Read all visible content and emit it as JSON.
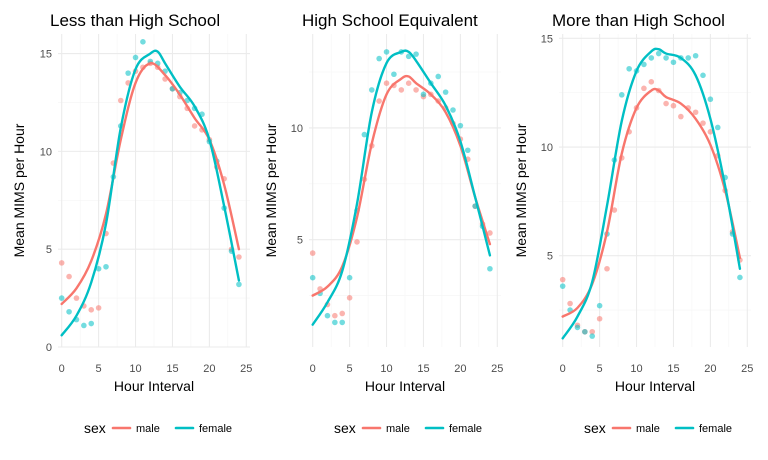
{
  "colors": {
    "male": "#F8766D",
    "female": "#00BFC4",
    "grid_major": "#EBEBEB",
    "grid_minor": "#F5F5F5"
  },
  "legend": {
    "title": "sex",
    "entries": [
      {
        "name": "male",
        "color": "#F8766D"
      },
      {
        "name": "female",
        "color": "#00BFC4"
      }
    ]
  },
  "chart_data": [
    {
      "type": "scatter",
      "title": "Less than High School",
      "xlabel": "Hour Interval",
      "ylabel": "Mean MIMS per Hour",
      "xlim": [
        -0.5,
        25.5
      ],
      "ylim": [
        0,
        16
      ],
      "xticks": [
        0,
        5,
        10,
        15,
        20,
        25
      ],
      "yticks": [
        0,
        5,
        10,
        15
      ],
      "grid": true,
      "legend_position": "bottom",
      "series": [
        {
          "name": "male",
          "points": [
            [
              0,
              4.3
            ],
            [
              1,
              3.6
            ],
            [
              2,
              2.5
            ],
            [
              3,
              2.1
            ],
            [
              4,
              1.9
            ],
            [
              5,
              2.0
            ],
            [
              6,
              5.8
            ],
            [
              7,
              9.4
            ],
            [
              8,
              12.6
            ],
            [
              9,
              13.5
            ],
            [
              10,
              14.1
            ],
            [
              11,
              14.3
            ],
            [
              12,
              14.5
            ],
            [
              13,
              14.3
            ],
            [
              14,
              13.7
            ],
            [
              15,
              13.2
            ],
            [
              16,
              12.8
            ],
            [
              17,
              12.2
            ],
            [
              18,
              11.3
            ],
            [
              19,
              11.1
            ],
            [
              20,
              10.6
            ],
            [
              21,
              9.2
            ],
            [
              22,
              8.6
            ],
            [
              23,
              5.0
            ],
            [
              24,
              4.6
            ]
          ],
          "smooth": [
            [
              0,
              2.2
            ],
            [
              2,
              3.0
            ],
            [
              4,
              4.4
            ],
            [
              6,
              6.8
            ],
            [
              8,
              10.6
            ],
            [
              10,
              13.5
            ],
            [
              12,
              14.5
            ],
            [
              14,
              13.9
            ],
            [
              16,
              12.9
            ],
            [
              18,
              11.7
            ],
            [
              20,
              10.6
            ],
            [
              22,
              8.3
            ],
            [
              24,
              5.0
            ]
          ]
        },
        {
          "name": "female",
          "points": [
            [
              0,
              2.5
            ],
            [
              1,
              1.8
            ],
            [
              2,
              1.4
            ],
            [
              3,
              1.1
            ],
            [
              4,
              1.2
            ],
            [
              5,
              4.0
            ],
            [
              6,
              4.1
            ],
            [
              7,
              8.7
            ],
            [
              8,
              11.3
            ],
            [
              9,
              14.0
            ],
            [
              10,
              14.8
            ],
            [
              11,
              15.6
            ],
            [
              12,
              14.6
            ],
            [
              13,
              14.5
            ],
            [
              14,
              14.1
            ],
            [
              15,
              13.2
            ],
            [
              16,
              13.0
            ],
            [
              17,
              12.6
            ],
            [
              18,
              12.2
            ],
            [
              19,
              11.9
            ],
            [
              20,
              10.5
            ],
            [
              21,
              9.5
            ],
            [
              22,
              7.1
            ],
            [
              23,
              4.9
            ],
            [
              24,
              3.2
            ]
          ],
          "smooth": [
            [
              0,
              0.6
            ],
            [
              2,
              1.6
            ],
            [
              4,
              3.3
            ],
            [
              6,
              6.3
            ],
            [
              8,
              11.2
            ],
            [
              10,
              14.2
            ],
            [
              12,
              15.0
            ],
            [
              13,
              15.1
            ],
            [
              14,
              14.5
            ],
            [
              16,
              13.3
            ],
            [
              18,
              12.3
            ],
            [
              20,
              10.6
            ],
            [
              22,
              7.2
            ],
            [
              24,
              3.4
            ]
          ]
        }
      ]
    },
    {
      "type": "scatter",
      "title": "High School Equivalent",
      "xlabel": "Hour Interval",
      "ylabel": "Mean MIMS per Hour",
      "xlim": [
        -0.5,
        25.5
      ],
      "ylim": [
        0.2,
        14.2
      ],
      "xticks": [
        0,
        5,
        10,
        15,
        20,
        25
      ],
      "yticks": [
        5,
        10
      ],
      "grid": true,
      "legend_position": "bottom",
      "series": [
        {
          "name": "male",
          "points": [
            [
              0,
              4.4
            ],
            [
              1,
              2.8
            ],
            [
              2,
              2.1
            ],
            [
              3,
              1.6
            ],
            [
              4,
              1.7
            ],
            [
              5,
              2.4
            ],
            [
              6,
              4.9
            ],
            [
              7,
              7.7
            ],
            [
              8,
              9.2
            ],
            [
              9,
              11.2
            ],
            [
              10,
              12.0
            ],
            [
              11,
              11.9
            ],
            [
              12,
              11.7
            ],
            [
              13,
              12.0
            ],
            [
              14,
              11.7
            ],
            [
              15,
              11.4
            ],
            [
              16,
              11.5
            ],
            [
              17,
              11.2
            ],
            [
              18,
              10.9
            ],
            [
              19,
              10.2
            ],
            [
              20,
              9.5
            ],
            [
              21,
              8.6
            ],
            [
              22,
              6.5
            ],
            [
              23,
              5.7
            ],
            [
              24,
              5.3
            ]
          ],
          "smooth": [
            [
              0,
              2.5
            ],
            [
              2,
              2.9
            ],
            [
              4,
              3.8
            ],
            [
              6,
              6.0
            ],
            [
              8,
              9.3
            ],
            [
              10,
              11.5
            ],
            [
              12,
              12.2
            ],
            [
              13,
              12.3
            ],
            [
              14,
              12.0
            ],
            [
              16,
              11.5
            ],
            [
              18,
              10.7
            ],
            [
              20,
              9.2
            ],
            [
              22,
              6.9
            ],
            [
              24,
              4.8
            ]
          ]
        },
        {
          "name": "female",
          "points": [
            [
              0,
              3.3
            ],
            [
              1,
              2.6
            ],
            [
              2,
              1.6
            ],
            [
              3,
              1.3
            ],
            [
              4,
              1.3
            ],
            [
              5,
              3.3
            ],
            [
              6,
              6.3
            ],
            [
              7,
              9.7
            ],
            [
              8,
              11.7
            ],
            [
              9,
              13.1
            ],
            [
              10,
              13.4
            ],
            [
              11,
              12.4
            ],
            [
              12,
              13.4
            ],
            [
              13,
              13.2
            ],
            [
              14,
              13.3
            ],
            [
              15,
              11.5
            ],
            [
              16,
              12.0
            ],
            [
              17,
              12.3
            ],
            [
              18,
              11.6
            ],
            [
              19,
              10.8
            ],
            [
              20,
              10.1
            ],
            [
              21,
              9.0
            ],
            [
              22,
              6.5
            ],
            [
              23,
              5.6
            ],
            [
              24,
              3.7
            ]
          ],
          "smooth": [
            [
              0,
              1.2
            ],
            [
              2,
              2.2
            ],
            [
              4,
              3.6
            ],
            [
              6,
              6.6
            ],
            [
              8,
              10.7
            ],
            [
              10,
              12.9
            ],
            [
              12,
              13.4
            ],
            [
              13,
              13.4
            ],
            [
              14,
              13.0
            ],
            [
              16,
              12.0
            ],
            [
              18,
              11.0
            ],
            [
              20,
              9.4
            ],
            [
              22,
              6.9
            ],
            [
              24,
              4.3
            ]
          ]
        }
      ]
    },
    {
      "type": "scatter",
      "title": "More than High School",
      "xlabel": "Hour Interval",
      "ylabel": "Mean MIMS per Hour",
      "xlim": [
        -0.5,
        25.5
      ],
      "ylim": [
        0.8,
        15.2
      ],
      "xticks": [
        0,
        5,
        10,
        15,
        20,
        25
      ],
      "yticks": [
        5,
        10,
        15
      ],
      "grid": true,
      "legend_position": "bottom",
      "series": [
        {
          "name": "male",
          "points": [
            [
              0,
              3.9
            ],
            [
              1,
              2.8
            ],
            [
              2,
              1.8
            ],
            [
              3,
              1.5
            ],
            [
              4,
              1.5
            ],
            [
              5,
              2.1
            ],
            [
              6,
              4.4
            ],
            [
              7,
              7.1
            ],
            [
              8,
              9.5
            ],
            [
              9,
              10.7
            ],
            [
              10,
              11.8
            ],
            [
              11,
              12.7
            ],
            [
              12,
              13.0
            ],
            [
              13,
              12.6
            ],
            [
              14,
              12.0
            ],
            [
              15,
              11.9
            ],
            [
              16,
              11.4
            ],
            [
              17,
              11.8
            ],
            [
              18,
              11.6
            ],
            [
              19,
              11.1
            ],
            [
              20,
              10.7
            ],
            [
              21,
              9.6
            ],
            [
              22,
              8.0
            ],
            [
              23,
              6.1
            ],
            [
              24,
              4.8
            ]
          ],
          "smooth": [
            [
              0,
              2.2
            ],
            [
              2,
              2.6
            ],
            [
              4,
              3.7
            ],
            [
              6,
              6.1
            ],
            [
              8,
              9.7
            ],
            [
              10,
              11.8
            ],
            [
              12,
              12.6
            ],
            [
              13,
              12.6
            ],
            [
              14,
              12.3
            ],
            [
              16,
              12.0
            ],
            [
              18,
              11.3
            ],
            [
              20,
              10.1
            ],
            [
              22,
              8.0
            ],
            [
              24,
              4.9
            ]
          ]
        },
        {
          "name": "female",
          "points": [
            [
              0,
              3.6
            ],
            [
              1,
              2.5
            ],
            [
              2,
              1.7
            ],
            [
              3,
              1.5
            ],
            [
              4,
              1.3
            ],
            [
              5,
              2.7
            ],
            [
              6,
              6.0
            ],
            [
              7,
              9.4
            ],
            [
              8,
              12.4
            ],
            [
              9,
              13.6
            ],
            [
              10,
              13.5
            ],
            [
              11,
              13.8
            ],
            [
              12,
              14.1
            ],
            [
              13,
              14.3
            ],
            [
              14,
              14.1
            ],
            [
              15,
              13.9
            ],
            [
              16,
              14.1
            ],
            [
              17,
              14.1
            ],
            [
              18,
              14.2
            ],
            [
              19,
              13.3
            ],
            [
              20,
              12.2
            ],
            [
              21,
              10.9
            ],
            [
              22,
              8.6
            ],
            [
              23,
              6.0
            ],
            [
              24,
              4.0
            ]
          ],
          "smooth": [
            [
              0,
              1.2
            ],
            [
              2,
              2.2
            ],
            [
              4,
              3.8
            ],
            [
              6,
              7.3
            ],
            [
              8,
              11.2
            ],
            [
              10,
              13.5
            ],
            [
              12,
              14.4
            ],
            [
              13,
              14.5
            ],
            [
              14,
              14.3
            ],
            [
              16,
              14.1
            ],
            [
              18,
              13.3
            ],
            [
              20,
              11.3
            ],
            [
              22,
              8.2
            ],
            [
              24,
              4.4
            ]
          ]
        }
      ]
    }
  ]
}
